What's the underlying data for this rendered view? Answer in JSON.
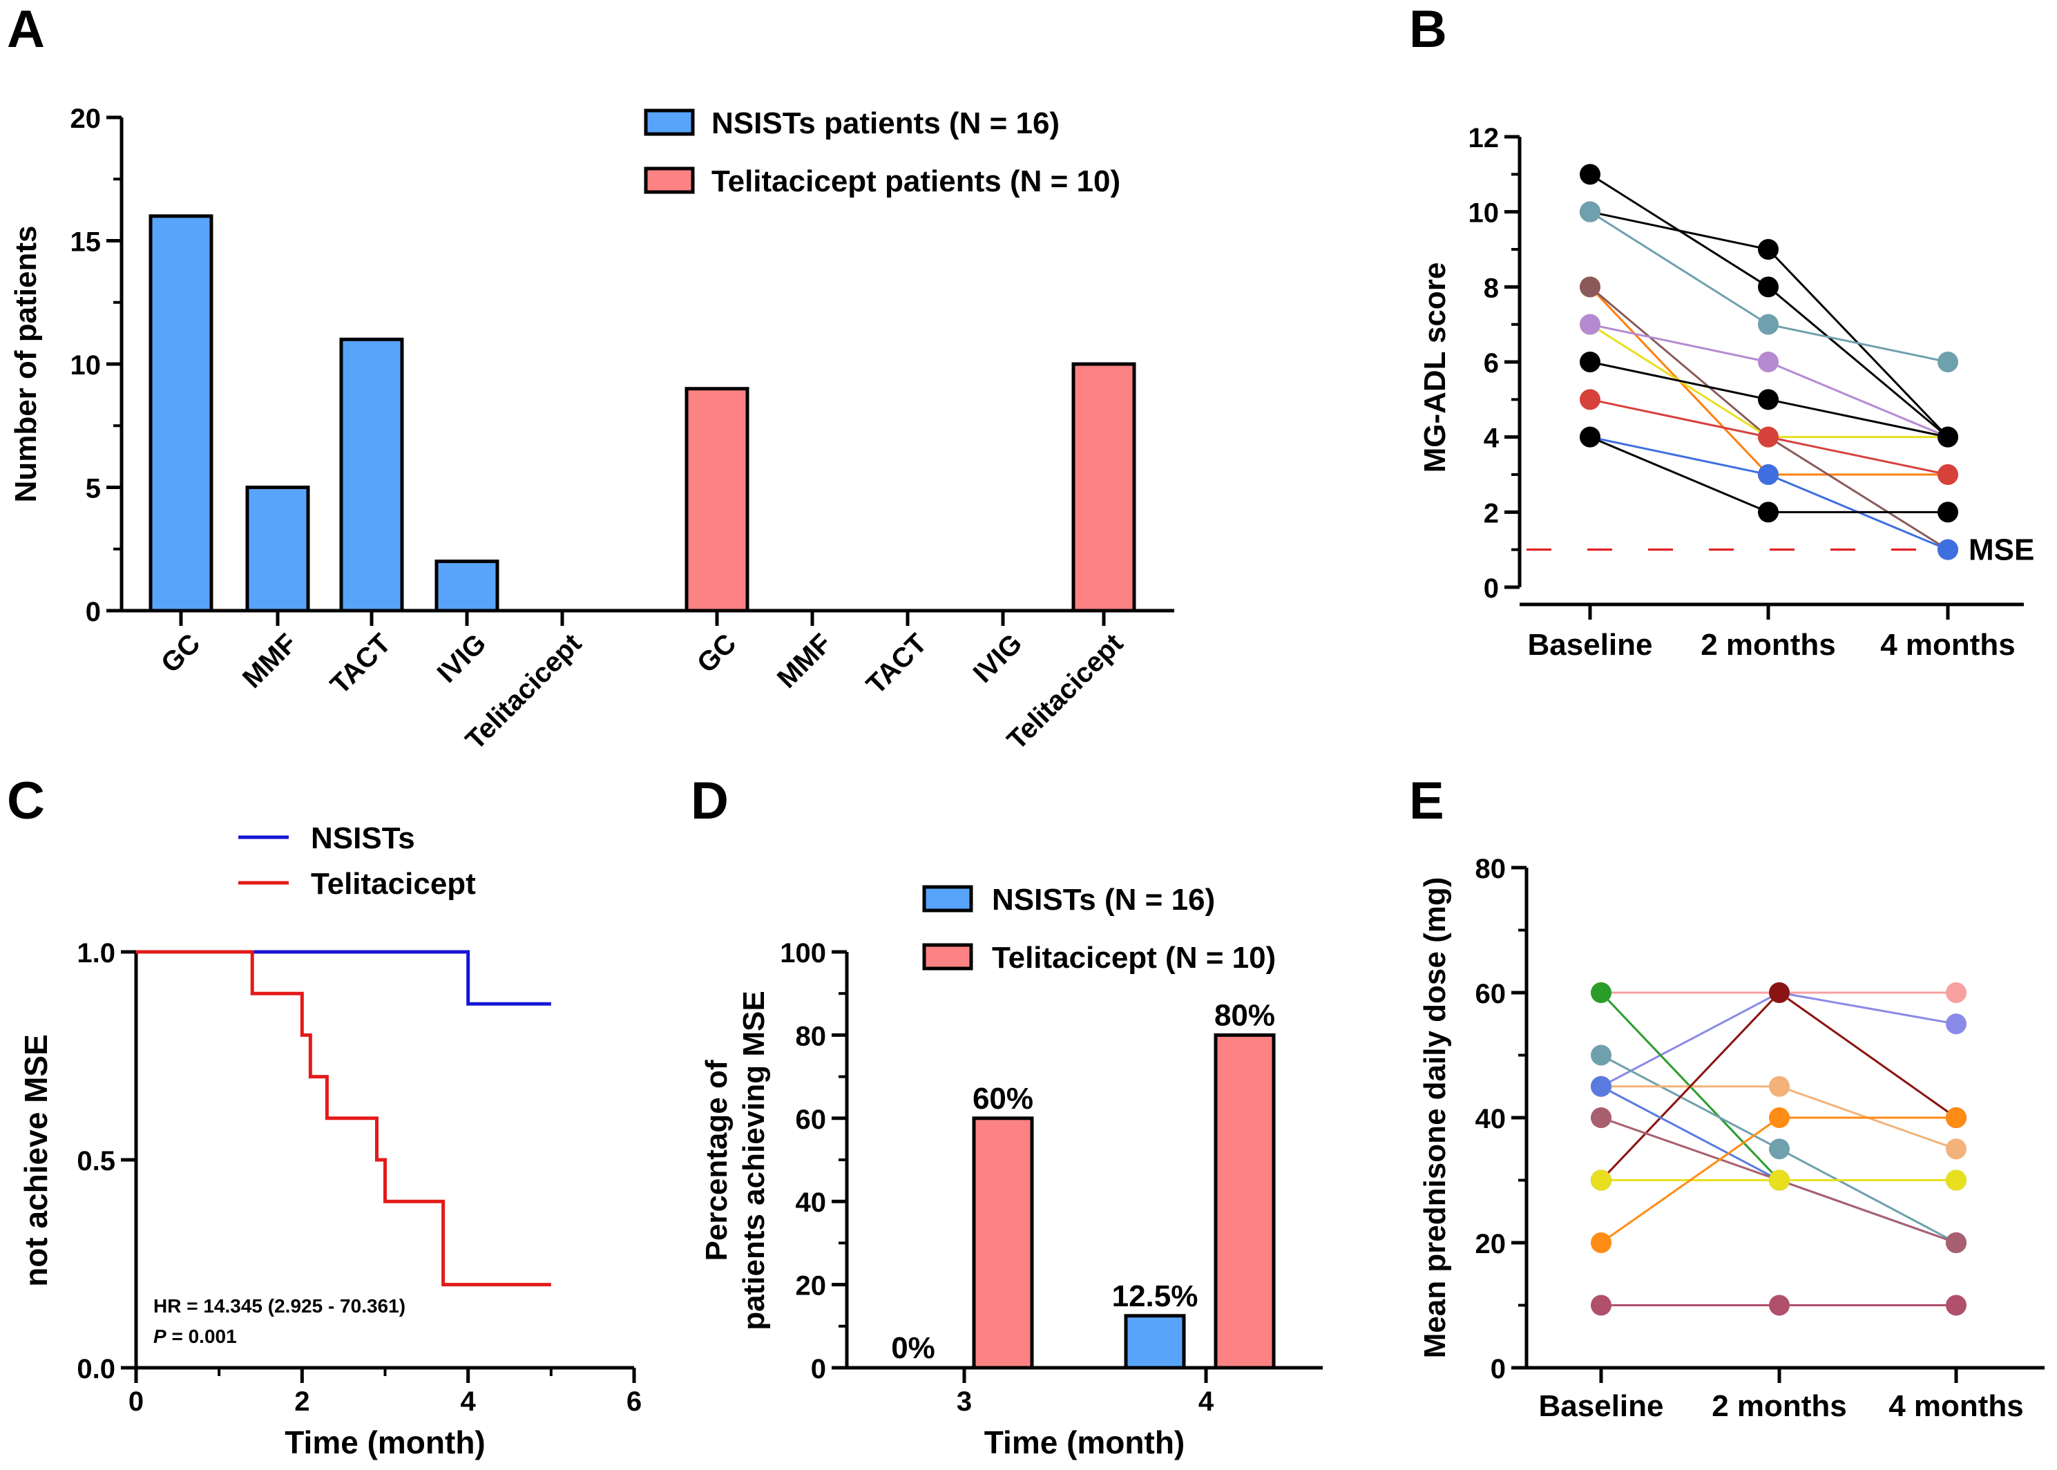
{
  "panel_labels": [
    "A",
    "B",
    "C",
    "D",
    "E"
  ],
  "chart_data": [
    {
      "panel": "A",
      "type": "bar",
      "ylabel": "Number of patients",
      "ylim": [
        0,
        20
      ],
      "yticks": [
        "0",
        "5",
        "10",
        "15",
        "20"
      ],
      "groups": [
        {
          "name": "NSISTs patients (N = 16)",
          "color": "#58a4fa",
          "categories": [
            "GC",
            "MMF",
            "TACT",
            "IVIG",
            "Telitacicept"
          ],
          "values": [
            16,
            5,
            11,
            2,
            0
          ]
        },
        {
          "name": "Telitacicept patients (N = 10)",
          "color": "#fc8284",
          "categories": [
            "GC",
            "MMF",
            "TACT",
            "IVIG",
            "Telitacicept"
          ],
          "values": [
            9,
            0,
            0,
            0,
            10
          ]
        }
      ],
      "legend": [
        "NSISTs patients (N = 16)",
        "Telitacicept patients (N = 10)"
      ]
    },
    {
      "panel": "B",
      "type": "line",
      "ylabel": "MG-ADL score",
      "ylim": [
        0,
        12
      ],
      "yticks": [
        "0",
        "2",
        "4",
        "6",
        "8",
        "10",
        "12"
      ],
      "categories": [
        "Baseline",
        "2 months",
        "4 months"
      ],
      "threshold": {
        "value": 1,
        "label": "MSE",
        "color": "#e0161b"
      },
      "series": [
        {
          "color": "#000000",
          "values": [
            11,
            8,
            4
          ]
        },
        {
          "color": "#000000",
          "values": [
            10,
            9,
            4
          ]
        },
        {
          "color": "#6fa0ad",
          "values": [
            10,
            7,
            6
          ]
        },
        {
          "color": "#ff7f0e",
          "values": [
            8,
            3,
            3
          ]
        },
        {
          "color": "#8a5a5a",
          "values": [
            8,
            4,
            1
          ]
        },
        {
          "color": "#e8e01e",
          "values": [
            7,
            4,
            4
          ]
        },
        {
          "color": "#b58ad1",
          "values": [
            7,
            6,
            4
          ]
        },
        {
          "color": "#000000",
          "values": [
            6,
            5,
            4
          ]
        },
        {
          "color": "#d6413c",
          "values": [
            5,
            4,
            3
          ]
        },
        {
          "color": "#3e6fe0",
          "values": [
            4,
            3,
            1
          ]
        },
        {
          "color": "#000000",
          "values": [
            4,
            2,
            2
          ]
        }
      ]
    },
    {
      "panel": "C",
      "type": "line",
      "xlabel": "Time (month)",
      "ylabel": "not achieve MSE",
      "xlim": [
        0,
        6
      ],
      "ylim": [
        0,
        1
      ],
      "xticks": [
        "0",
        "2",
        "4",
        "6"
      ],
      "yticks": [
        "0.0",
        "0.5",
        "1.0"
      ],
      "series": [
        {
          "name": "NSISTs",
          "color": "#1616d6",
          "steps": [
            [
              0,
              1.0
            ],
            [
              4.0,
              1.0
            ],
            [
              4.0,
              0.875
            ],
            [
              5.0,
              0.875
            ]
          ]
        },
        {
          "name": "Telitacicept",
          "color": "#e41a1a",
          "steps": [
            [
              0,
              1.0
            ],
            [
              1.4,
              1.0
            ],
            [
              1.4,
              0.9
            ],
            [
              2.0,
              0.9
            ],
            [
              2.0,
              0.8
            ],
            [
              2.1,
              0.8
            ],
            [
              2.1,
              0.7
            ],
            [
              2.3,
              0.7
            ],
            [
              2.3,
              0.6
            ],
            [
              2.9,
              0.6
            ],
            [
              2.9,
              0.5
            ],
            [
              3.0,
              0.5
            ],
            [
              3.0,
              0.4
            ],
            [
              3.7,
              0.4
            ],
            [
              3.7,
              0.2
            ],
            [
              5.0,
              0.2
            ]
          ]
        }
      ],
      "annotation": {
        "line1": "HR = 14.345 (2.925 - 70.361)",
        "p_label": "P",
        "p_value": " = 0.001"
      }
    },
    {
      "panel": "D",
      "type": "bar",
      "xlabel": "Time (month)",
      "ylabel_line1": "Percentage of",
      "ylabel_line2": "patients achieving MSE",
      "ylim": [
        0,
        100
      ],
      "yticks": [
        "0",
        "20",
        "40",
        "60",
        "80",
        "100"
      ],
      "categories": [
        "3",
        "4"
      ],
      "series": [
        {
          "name": "NSISTs (N = 16)",
          "color": "#58a4fa",
          "values": [
            0,
            12.5
          ],
          "labels": [
            "0%",
            "12.5%"
          ]
        },
        {
          "name": "Telitacicept (N = 10)",
          "color": "#fc8284",
          "values": [
            60,
            80
          ],
          "labels": [
            "60%",
            "80%"
          ]
        }
      ]
    },
    {
      "panel": "E",
      "type": "line",
      "ylabel": "Mean prednisone daily dose (mg)",
      "ylim": [
        0,
        80
      ],
      "yticks": [
        "0",
        "20",
        "40",
        "60",
        "80"
      ],
      "categories": [
        "Baseline",
        "2 months",
        "4 months"
      ],
      "series": [
        {
          "color": "#f7a0a0",
          "values": [
            60,
            60,
            60
          ]
        },
        {
          "color": "#8a8ae8",
          "values": [
            45,
            60,
            55
          ]
        },
        {
          "color": "#2a9c2a",
          "values": [
            60,
            30,
            30
          ]
        },
        {
          "color": "#6fa0ad",
          "values": [
            50,
            35,
            20
          ]
        },
        {
          "color": "#f2b27a",
          "values": [
            45,
            45,
            35
          ]
        },
        {
          "color": "#f0b070",
          "values": [
            30,
            60,
            40
          ]
        },
        {
          "color": "#8a1414",
          "values": [
            30,
            60,
            40
          ]
        },
        {
          "color": "#f29aa0",
          "values": [
            40,
            30,
            20
          ]
        },
        {
          "color": "#5a7ae0",
          "values": [
            45,
            30,
            20
          ]
        },
        {
          "color": "#a86070",
          "values": [
            40,
            30,
            20
          ]
        },
        {
          "color": "#e8e01e",
          "values": [
            30,
            30,
            30
          ]
        },
        {
          "color": "#ff8c14",
          "values": [
            20,
            40,
            40
          ]
        },
        {
          "color": "#b0506a",
          "values": [
            10,
            10,
            10
          ]
        }
      ]
    }
  ]
}
